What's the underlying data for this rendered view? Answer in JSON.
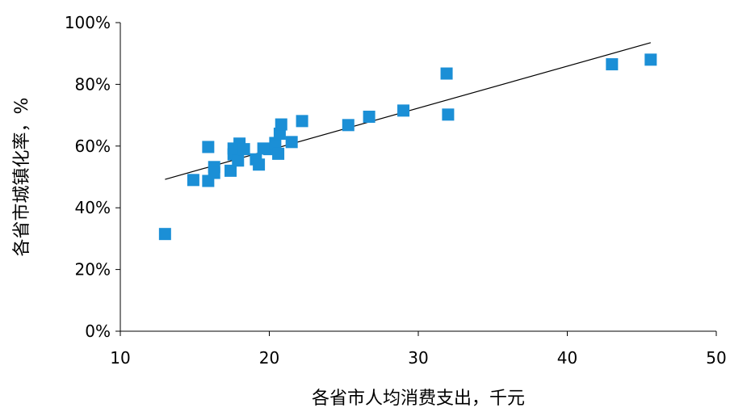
{
  "chart_data": {
    "type": "scatter",
    "title": "",
    "xlabel": "各省市人均消费支出，千元",
    "ylabel": "各省市城镇化率，%",
    "xlim": [
      10,
      50
    ],
    "ylim": [
      0,
      1
    ],
    "x_ticks": [
      10,
      20,
      30,
      40,
      50
    ],
    "x_tick_labels": [
      "10",
      "20",
      "30",
      "40",
      "50"
    ],
    "y_ticks": [
      0,
      0.2,
      0.4,
      0.6,
      0.8,
      1.0
    ],
    "y_tick_labels": [
      "0%",
      "20%",
      "40%",
      "60%",
      "80%",
      "100%"
    ],
    "grid": false,
    "legend": "none",
    "marker_color": "#1b8fd6",
    "trendline_color": "#000000",
    "series": [
      {
        "name": "",
        "points": [
          {
            "x": 13.0,
            "y": 0.315
          },
          {
            "x": 14.9,
            "y": 0.49
          },
          {
            "x": 15.9,
            "y": 0.487
          },
          {
            "x": 15.9,
            "y": 0.597
          },
          {
            "x": 16.3,
            "y": 0.532
          },
          {
            "x": 16.3,
            "y": 0.513
          },
          {
            "x": 17.4,
            "y": 0.52
          },
          {
            "x": 17.6,
            "y": 0.592
          },
          {
            "x": 17.6,
            "y": 0.573
          },
          {
            "x": 17.9,
            "y": 0.553
          },
          {
            "x": 18.0,
            "y": 0.608
          },
          {
            "x": 18.3,
            "y": 0.59
          },
          {
            "x": 19.1,
            "y": 0.557
          },
          {
            "x": 19.3,
            "y": 0.54
          },
          {
            "x": 19.6,
            "y": 0.592
          },
          {
            "x": 20.0,
            "y": 0.59
          },
          {
            "x": 20.4,
            "y": 0.61
          },
          {
            "x": 20.6,
            "y": 0.575
          },
          {
            "x": 20.7,
            "y": 0.64
          },
          {
            "x": 20.8,
            "y": 0.67
          },
          {
            "x": 21.5,
            "y": 0.613
          },
          {
            "x": 22.2,
            "y": 0.681
          },
          {
            "x": 25.3,
            "y": 0.668
          },
          {
            "x": 26.7,
            "y": 0.695
          },
          {
            "x": 29.0,
            "y": 0.715
          },
          {
            "x": 31.9,
            "y": 0.835
          },
          {
            "x": 32.0,
            "y": 0.702
          },
          {
            "x": 43.0,
            "y": 0.865
          },
          {
            "x": 45.6,
            "y": 0.88
          }
        ]
      }
    ],
    "trendline": {
      "x": [
        13.0,
        45.6
      ],
      "y": [
        0.492,
        0.935
      ]
    }
  }
}
